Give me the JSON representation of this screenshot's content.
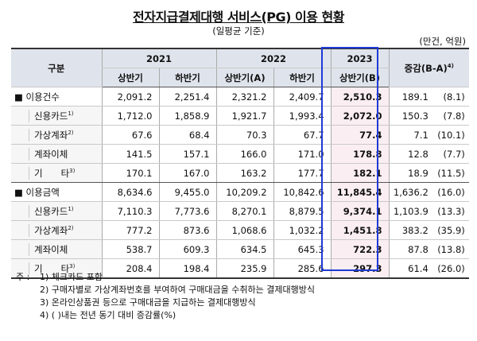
{
  "title": "전자지급결제대행 서비스(PG) 이용 현황",
  "subtitle": "(일평균 기준)",
  "unit": "(만건, 억원)",
  "header": {
    "category": "구분",
    "years": [
      "2021",
      "2022",
      "2023"
    ],
    "change": "증감(B-A)",
    "change_sup": "4)",
    "halves": [
      "상반기",
      "하반기",
      "상반기(A)",
      "하반기",
      "상반기(B)"
    ]
  },
  "rows": [
    {
      "type": "main",
      "bullet": "■",
      "label": "이용건수",
      "sup": "",
      "values": [
        "2,091.2",
        "2,251.4",
        "2,321.2",
        "2,409.7",
        "2,510.3"
      ],
      "diff": "189.1",
      "pct": "(8.1)"
    },
    {
      "type": "sub",
      "label": "신용카드",
      "sup": "1)",
      "values": [
        "1,712.0",
        "1,858.9",
        "1,921.7",
        "1,993.4",
        "2,072.0"
      ],
      "diff": "150.3",
      "pct": "(7.8)"
    },
    {
      "type": "sub",
      "label": "가상계좌",
      "sup": "2)",
      "values": [
        "67.6",
        "68.4",
        "70.3",
        "67.7",
        "77.4"
      ],
      "diff": "7.1",
      "pct": "(10.1)"
    },
    {
      "type": "sub",
      "label": "계좌이체",
      "sup": "",
      "values": [
        "141.5",
        "157.1",
        "166.0",
        "171.0",
        "178.8"
      ],
      "diff": "12.8",
      "pct": "(7.7)"
    },
    {
      "type": "sub",
      "label": "기　　타",
      "sup": "3)",
      "values": [
        "170.1",
        "167.0",
        "163.2",
        "177.7",
        "182.1"
      ],
      "diff": "18.9",
      "pct": "(11.5)"
    },
    {
      "type": "main",
      "bullet": "■",
      "label": "이용금액",
      "sup": "",
      "values": [
        "8,634.6",
        "9,455.0",
        "10,209.2",
        "10,842.6",
        "11,845.4"
      ],
      "diff": "1,636.2",
      "pct": "(16.0)"
    },
    {
      "type": "sub",
      "label": "신용카드",
      "sup": "1)",
      "values": [
        "7,110.3",
        "7,773.6",
        "8,270.1",
        "8,879.5",
        "9,374.1"
      ],
      "diff": "1,103.9",
      "pct": "(13.3)"
    },
    {
      "type": "sub",
      "label": "가상계좌",
      "sup": "2)",
      "values": [
        "777.2",
        "873.6",
        "1,068.6",
        "1,032.2",
        "1,451.8"
      ],
      "diff": "383.2",
      "pct": "(35.9)"
    },
    {
      "type": "sub",
      "label": "계좌이체",
      "sup": "",
      "values": [
        "538.7",
        "609.3",
        "634.5",
        "645.3",
        "722.3"
      ],
      "diff": "87.8",
      "pct": "(13.8)"
    },
    {
      "type": "sub",
      "label": "기　　타",
      "sup": "3)",
      "values": [
        "208.4",
        "198.4",
        "235.9",
        "285.6",
        "297.3"
      ],
      "diff": "61.4",
      "pct": "(26.0)"
    }
  ],
  "notes": {
    "prefix": "주 :",
    "items": [
      "1) 체크카드 포함",
      "2) 구매자별로 가상계좌번호를 부여하여 구매대금을 수취하는 결제대행방식",
      "3) 온라인상품권 등으로 구매대금을 지급하는 결제대행방식",
      "4) ( )내는 전년 동기 대비 증감률(%)"
    ]
  }
}
